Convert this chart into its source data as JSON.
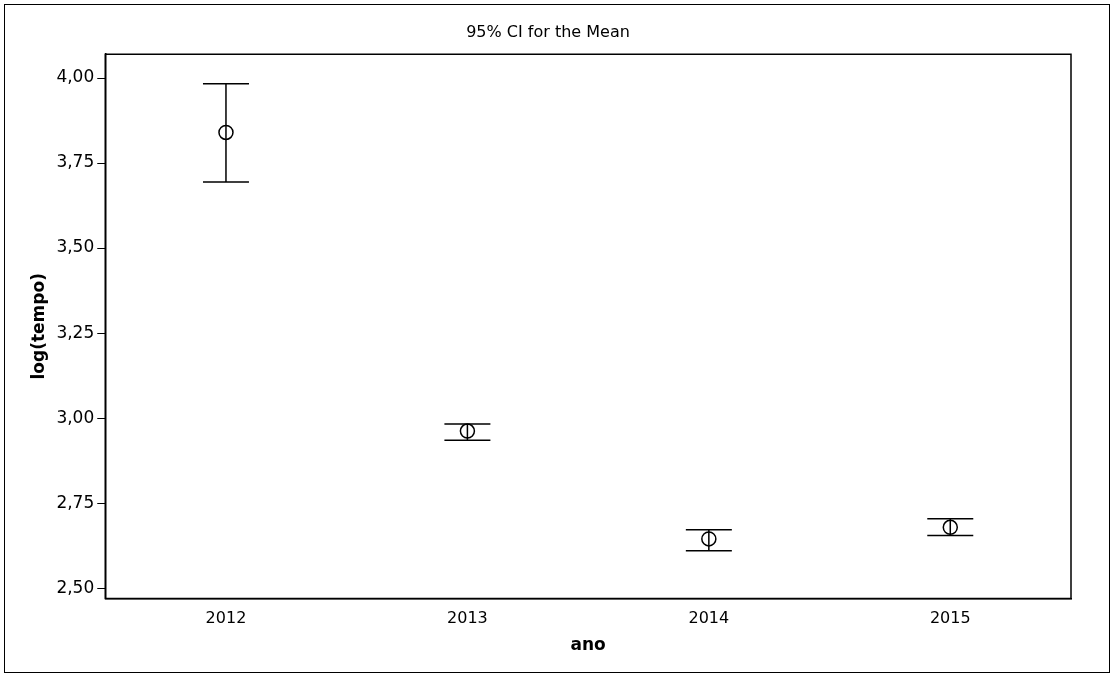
{
  "chart_data": {
    "type": "scatter",
    "title": "95% CI for the Mean",
    "xlabel": "ano",
    "ylabel": "log(tempo)",
    "categories": [
      "2012",
      "2013",
      "2014",
      "2015"
    ],
    "values": [
      3.84,
      2.962,
      2.645,
      2.679
    ],
    "errors": [
      [
        3.694,
        3.983
      ],
      [
        2.935,
        2.983
      ],
      [
        2.61,
        2.672
      ],
      [
        2.655,
        2.704
      ]
    ],
    "color": "#000000",
    "marker": "circle",
    "grid": false,
    "legend": false,
    "ylim": [
      2.47,
      4.07
    ],
    "yticks": [
      {
        "value": 2.5,
        "label": "2,50"
      },
      {
        "value": 2.75,
        "label": "2,75"
      },
      {
        "value": 3,
        "label": "3,00"
      },
      {
        "value": 3.25,
        "label": "3,25"
      },
      {
        "value": 3.5,
        "label": "3,50"
      },
      {
        "value": 3.75,
        "label": "3,75"
      },
      {
        "value": 4,
        "label": "4,00"
      }
    ]
  }
}
